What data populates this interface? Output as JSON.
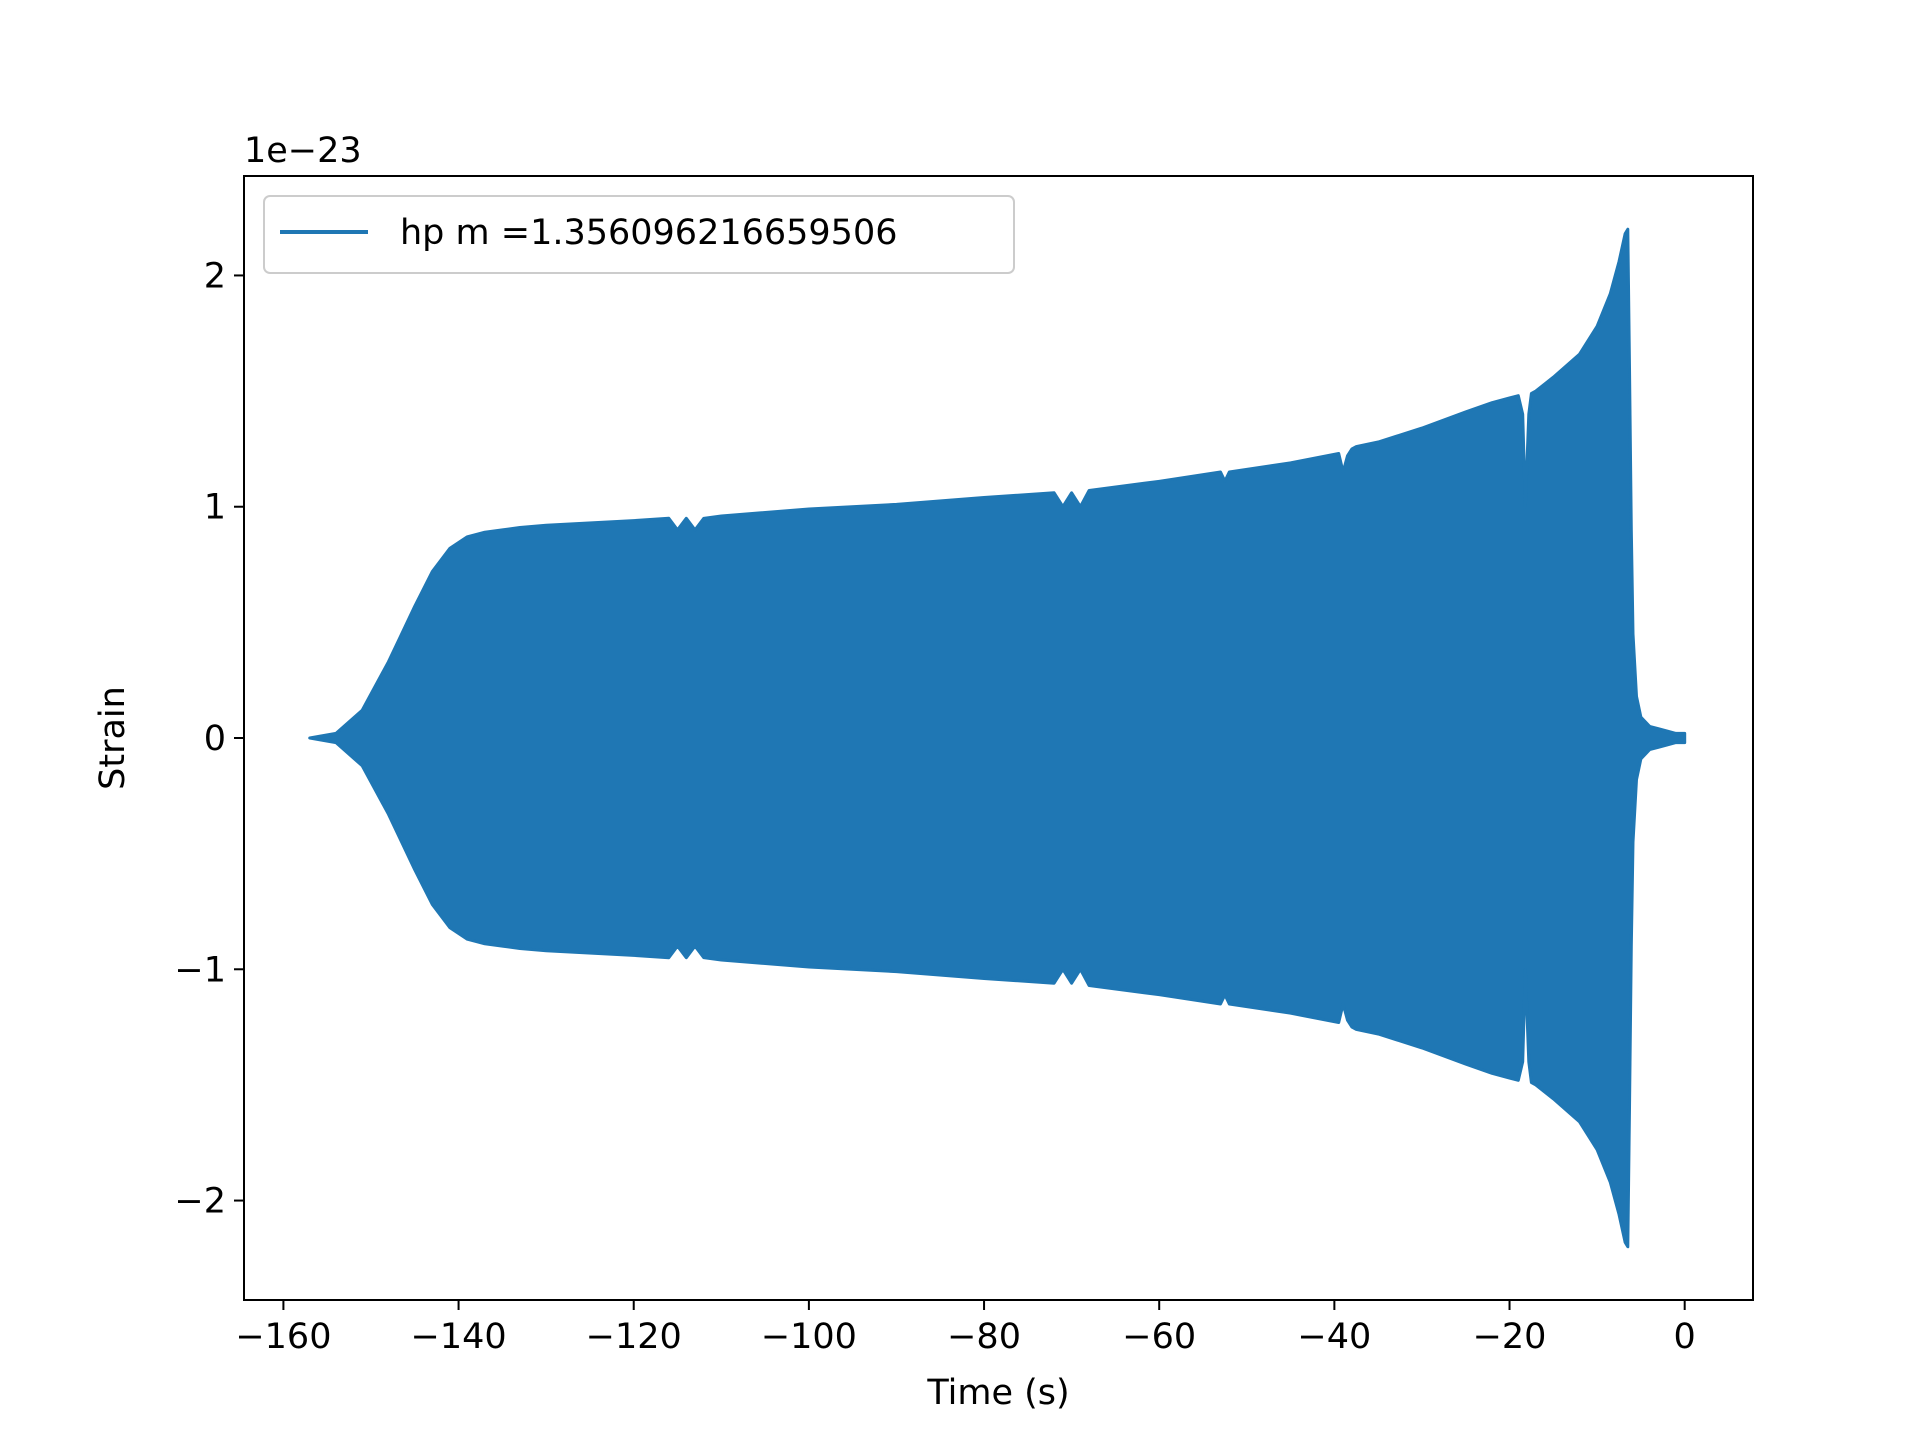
{
  "chart_data": {
    "type": "line",
    "title": "",
    "xlabel": "Time (s)",
    "ylabel": "Strain",
    "y_offset_label": "1e−23",
    "y_scale_factor": 1e-23,
    "xlim": [
      -164.5,
      7.8
    ],
    "ylim": [
      -2.43,
      2.43
    ],
    "x_ticks": [
      -160,
      -140,
      -120,
      -100,
      -80,
      -60,
      -40,
      -20,
      0
    ],
    "x_tick_labels": [
      "−160",
      "−140",
      "−120",
      "−100",
      "−80",
      "−60",
      "−40",
      "−20",
      "0"
    ],
    "y_ticks": [
      -2,
      -1,
      0,
      1,
      2
    ],
    "y_tick_labels": [
      "−2",
      "−1",
      "0",
      "1",
      "2"
    ],
    "grid": false,
    "legend_position": "top-left",
    "series": [
      {
        "name": "hp m =1.356096216659506",
        "color": "#1f77b4",
        "style": "dense-oscillation",
        "upper_envelope": {
          "x": [
            -157.0,
            -154.0,
            -151.0,
            -148.0,
            -145.0,
            -143.0,
            -141.0,
            -139.0,
            -137.0,
            -135.0,
            -133.0,
            -130.0,
            -120.0,
            -116.0,
            -115.0,
            -114.0,
            -113.0,
            -112.0,
            -110.0,
            -100.0,
            -90.0,
            -80.0,
            -72.0,
            -71.0,
            -70.0,
            -69.0,
            -68.0,
            -60.0,
            -53.0,
            -52.5,
            -52.0,
            -45.0,
            -39.5,
            -39.0,
            -38.5,
            -38.0,
            -37.5,
            -35.0,
            -30.0,
            -25.0,
            -22.0,
            -20.0,
            -19.0,
            -18.5,
            -18.2,
            -17.8,
            -17.5,
            -17.0,
            -15.0,
            -12.0,
            -10.0,
            -8.5,
            -7.5,
            -6.8,
            -6.5,
            -6.3,
            -6.1,
            -5.9,
            -5.5,
            -5.0,
            -4.0,
            -3.0,
            -2.0,
            -1.0,
            0.0
          ],
          "y": [
            0.0,
            0.02,
            0.12,
            0.33,
            0.57,
            0.72,
            0.82,
            0.87,
            0.89,
            0.9,
            0.91,
            0.92,
            0.94,
            0.95,
            0.9,
            0.95,
            0.9,
            0.95,
            0.96,
            0.99,
            1.01,
            1.04,
            1.06,
            1.0,
            1.06,
            1.0,
            1.07,
            1.11,
            1.15,
            1.11,
            1.15,
            1.19,
            1.23,
            1.15,
            1.22,
            1.25,
            1.26,
            1.28,
            1.34,
            1.41,
            1.45,
            1.47,
            1.48,
            1.4,
            1.0,
            1.4,
            1.49,
            1.5,
            1.56,
            1.66,
            1.78,
            1.92,
            2.06,
            2.18,
            2.2,
            1.6,
            0.9,
            0.45,
            0.18,
            0.09,
            0.05,
            0.04,
            0.03,
            0.02,
            0.02
          ]
        },
        "lower_envelope": {
          "x": [
            -157.0,
            -154.0,
            -151.0,
            -148.0,
            -145.0,
            -143.0,
            -141.0,
            -139.0,
            -137.0,
            -135.0,
            -133.0,
            -130.0,
            -120.0,
            -116.0,
            -115.0,
            -114.0,
            -113.0,
            -112.0,
            -110.0,
            -100.0,
            -90.0,
            -80.0,
            -72.0,
            -71.0,
            -70.0,
            -69.0,
            -68.0,
            -60.0,
            -53.0,
            -52.5,
            -52.0,
            -45.0,
            -39.5,
            -39.0,
            -38.5,
            -38.0,
            -37.5,
            -35.0,
            -30.0,
            -25.0,
            -22.0,
            -20.0,
            -19.0,
            -18.5,
            -18.2,
            -17.8,
            -17.5,
            -17.0,
            -15.0,
            -12.0,
            -10.0,
            -8.5,
            -7.5,
            -6.8,
            -6.5,
            -6.3,
            -6.1,
            -5.9,
            -5.5,
            -5.0,
            -4.0,
            -3.0,
            -2.0,
            -1.0,
            0.0
          ],
          "y": [
            0.0,
            -0.02,
            -0.12,
            -0.33,
            -0.57,
            -0.72,
            -0.82,
            -0.87,
            -0.89,
            -0.9,
            -0.91,
            -0.92,
            -0.94,
            -0.95,
            -0.9,
            -0.95,
            -0.9,
            -0.95,
            -0.96,
            -0.99,
            -1.01,
            -1.04,
            -1.06,
            -1.0,
            -1.06,
            -1.0,
            -1.07,
            -1.11,
            -1.15,
            -1.11,
            -1.15,
            -1.19,
            -1.23,
            -1.15,
            -1.22,
            -1.25,
            -1.26,
            -1.28,
            -1.34,
            -1.41,
            -1.45,
            -1.47,
            -1.48,
            -1.4,
            -1.0,
            -1.4,
            -1.49,
            -1.5,
            -1.56,
            -1.66,
            -1.78,
            -1.92,
            -2.06,
            -2.18,
            -2.2,
            -1.6,
            -0.9,
            -0.45,
            -0.18,
            -0.09,
            -0.05,
            -0.04,
            -0.03,
            -0.02,
            -0.02
          ]
        }
      }
    ]
  }
}
